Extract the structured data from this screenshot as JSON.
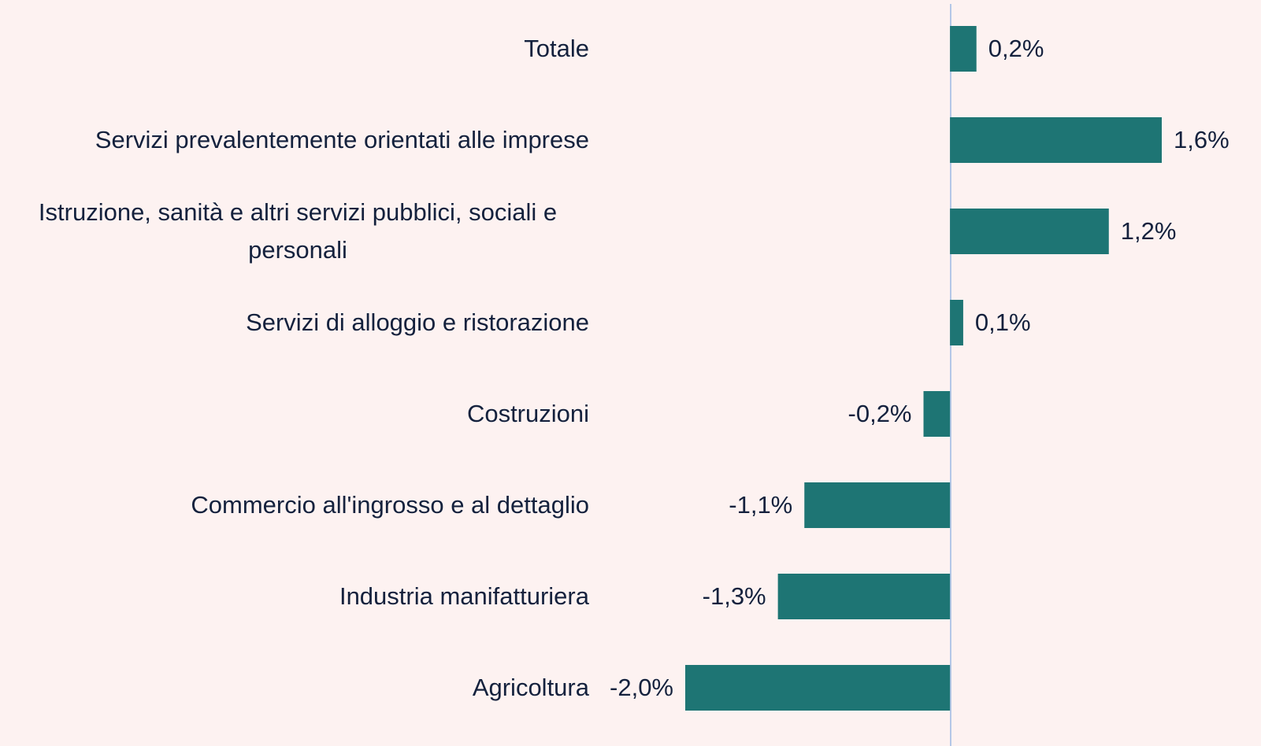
{
  "chart_data": {
    "type": "bar",
    "orientation": "horizontal",
    "categories": [
      "Totale",
      "Servizi prevalentemente orientati alle imprese",
      "Istruzione, sanità e altri servizi pubblici, sociali e personali",
      "Servizi di alloggio e ristorazione",
      "Costruzioni",
      "Commercio all'ingrosso e al dettaglio",
      "Industria manifatturiera",
      "Agricoltura"
    ],
    "values": [
      0.2,
      1.6,
      1.2,
      0.1,
      -0.2,
      -1.1,
      -1.3,
      -2.0
    ],
    "value_labels": [
      "0,2%",
      "1,6%",
      "1,2%",
      "0,1%",
      "-0,2%",
      "-1,1%",
      "-1,3%",
      "-2,0%"
    ],
    "color": "#1e7574"
  }
}
